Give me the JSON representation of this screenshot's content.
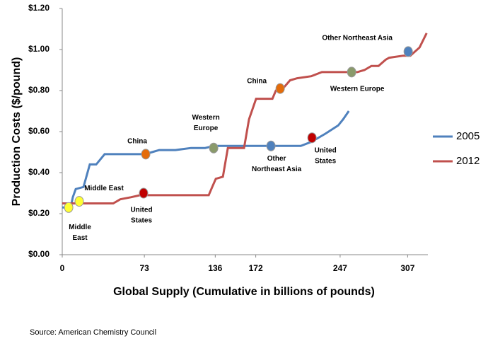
{
  "chart_data": {
    "type": "line",
    "ylabel": "Production Costs ($/pound)",
    "xlabel": "Global Supply (Cumulative in billions of pounds)",
    "source": "Source: American Chemistry Council",
    "xlim": [
      0,
      325
    ],
    "xticks": [
      0,
      73,
      136,
      172,
      247,
      307
    ],
    "ylim": [
      0,
      1.2
    ],
    "yticks": [
      {
        "value": 0,
        "label": "$0.00"
      },
      {
        "value": 0.2,
        "label": "$0.20"
      },
      {
        "value": 0.4,
        "label": "$0.40"
      },
      {
        "value": 0.6,
        "label": "$0.60"
      },
      {
        "value": 0.8,
        "label": "$0.80"
      },
      {
        "value": 1.0,
        "label": "$1.00"
      },
      {
        "value": 1.2,
        "label": "$1.20"
      }
    ],
    "grid": false,
    "legend": "right",
    "series": [
      {
        "name": "2005",
        "color": "#4f81bd",
        "x": [
          0,
          7.5,
          9.4,
          12,
          18.9,
          24.5,
          30.2,
          37.7,
          73.6,
          79.9,
          86.2,
          100.6,
          114.5,
          127,
          134.6,
          146,
          171,
          186.8,
          212,
          221.4,
          234,
          245.3,
          249.7,
          254.7
        ],
        "values": [
          0.23,
          0.23,
          0.28,
          0.32,
          0.33,
          0.44,
          0.44,
          0.49,
          0.49,
          0.5,
          0.51,
          0.51,
          0.52,
          0.52,
          0.53,
          0.53,
          0.53,
          0.53,
          0.53,
          0.55,
          0.59,
          0.63,
          0.66,
          0.7
        ]
      },
      {
        "name": "2012",
        "color": "#c0504d",
        "x": [
          0,
          20.1,
          45.3,
          51.6,
          61,
          69.2,
          130.2,
          133.3,
          136.5,
          142.8,
          147.2,
          161.6,
          166,
          172.3,
          186.8,
          189.9,
          196.2,
          202.5,
          208.8,
          221.4,
          230.8,
          246.5,
          262.3,
          268.6,
          274.8,
          281.1,
          287.4,
          290.6,
          303.1,
          309.4,
          317.6,
          323.9
        ],
        "values": [
          0.25,
          0.25,
          0.25,
          0.27,
          0.28,
          0.29,
          0.29,
          0.33,
          0.37,
          0.38,
          0.52,
          0.52,
          0.66,
          0.76,
          0.76,
          0.8,
          0.81,
          0.85,
          0.86,
          0.87,
          0.89,
          0.89,
          0.89,
          0.9,
          0.92,
          0.92,
          0.95,
          0.96,
          0.97,
          0.97,
          1.01,
          1.08
        ]
      }
    ],
    "markers": [
      {
        "x": 5.7,
        "y": 0.23,
        "color": "#ffff33",
        "label": [
          "Middle",
          "East"
        ]
      },
      {
        "x": 15.1,
        "y": 0.26,
        "color": "#ffff33",
        "label": [
          "Middle East"
        ]
      },
      {
        "x": 74.2,
        "y": 0.49,
        "color": "#e46c0a",
        "label": [
          "China"
        ]
      },
      {
        "x": 72.3,
        "y": 0.3,
        "color": "#c00000",
        "label": [
          "United",
          "States"
        ]
      },
      {
        "x": 134.6,
        "y": 0.52,
        "color": "#8a9a6b",
        "label": [
          "Western",
          "Europe"
        ]
      },
      {
        "x": 185.5,
        "y": 0.53,
        "color": "#4f81bd",
        "label": [
          "Other",
          "Northeast Asia"
        ]
      },
      {
        "x": 222,
        "y": 0.57,
        "color": "#c00000",
        "label": [
          "United",
          "States"
        ]
      },
      {
        "x": 193.7,
        "y": 0.81,
        "color": "#e46c0a",
        "label": [
          "China"
        ]
      },
      {
        "x": 257.2,
        "y": 0.89,
        "color": "#8a9a6b",
        "label": [
          "Western Europe"
        ]
      },
      {
        "x": 307.5,
        "y": 0.99,
        "color": "#4f81bd",
        "label": [
          "Other Northeast Asia"
        ]
      }
    ]
  }
}
